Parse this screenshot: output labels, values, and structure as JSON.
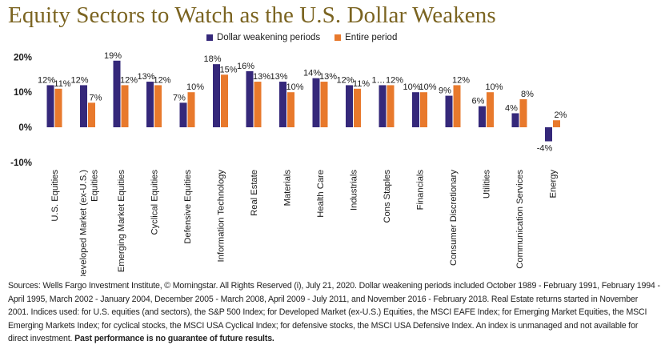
{
  "title": "Equity Sectors to Watch as the U.S. Dollar Weakens",
  "colors": {
    "dollar_weakening": "#35287a",
    "entire_period": "#e8792c",
    "title": "#7b6421"
  },
  "footnote": {
    "text": "Sources: Wells Fargo Investment Institute, © Morningstar. All Rights Reserved (i), July 21, 2020. Dollar weakening periods included October 1989 - February 1991, February 1994 - April 1995, March 2002 - January 2004, December 2005 - March 2008, April 2009 - July 2011, and November 2016 - February 2018. Real Estate returns started in November 2001. Indices used: for U.S. equities (and sectors), the S&P 500 Index; for Developed Market (ex-U.S.) Equities, the MSCI EAFE Index; for Emerging Market Equities, the MSCI Emerging Markets Index; for cyclical stocks, the MSCI USA Cyclical Index; for defensive stocks, the MSCI USA Defensive Index. An index is unmanaged and not available for direct investment.",
    "bold": "Past performance is no guarantee of future results."
  },
  "chart_data": {
    "type": "bar",
    "title": "Equity Sectors to Watch as the U.S. Dollar Weakens",
    "categories": [
      "U.S. Equities",
      "Developed Market (ex-U.S.) Equities",
      "Emerging Market Equities",
      "Cyclical Equities",
      "Defensive Equities",
      "Information Technology",
      "Real Estate",
      "Materials",
      "Health Care",
      "Industrials",
      "Cons Staples",
      "Financials",
      "Consumer Discretionary",
      "Utilities",
      "Communication Services",
      "Energy"
    ],
    "series": [
      {
        "name": "Dollar weakening periods",
        "values": [
          12,
          12,
          19,
          13,
          7,
          18,
          16,
          13,
          14,
          12,
          12,
          10,
          9,
          6,
          4,
          -4
        ],
        "labels": [
          "12%",
          "12%",
          "19%",
          "13%",
          "7%",
          "18%",
          "16%",
          "13%",
          "14%",
          "12%",
          "1…",
          "10%",
          "9%",
          "6%",
          "4%",
          "-4%"
        ]
      },
      {
        "name": "Entire period",
        "values": [
          11,
          7,
          12,
          12,
          10,
          15,
          13,
          10,
          13,
          11,
          12,
          10,
          12,
          10,
          8,
          2
        ],
        "labels": [
          "11%",
          "7%",
          "12%",
          "12%",
          "10%",
          "15%",
          "13%",
          "10%",
          "13%",
          "11%",
          "12%",
          "10%",
          "12%",
          "10%",
          "8%",
          "2%"
        ]
      }
    ],
    "yticks": [
      "20%",
      "10%",
      "0%",
      "-10%"
    ],
    "ytick_values": [
      20,
      10,
      0,
      -10
    ],
    "ylim": [
      -10,
      20
    ],
    "xlabel": "",
    "ylabel": "",
    "grid": false,
    "legend": "top"
  }
}
